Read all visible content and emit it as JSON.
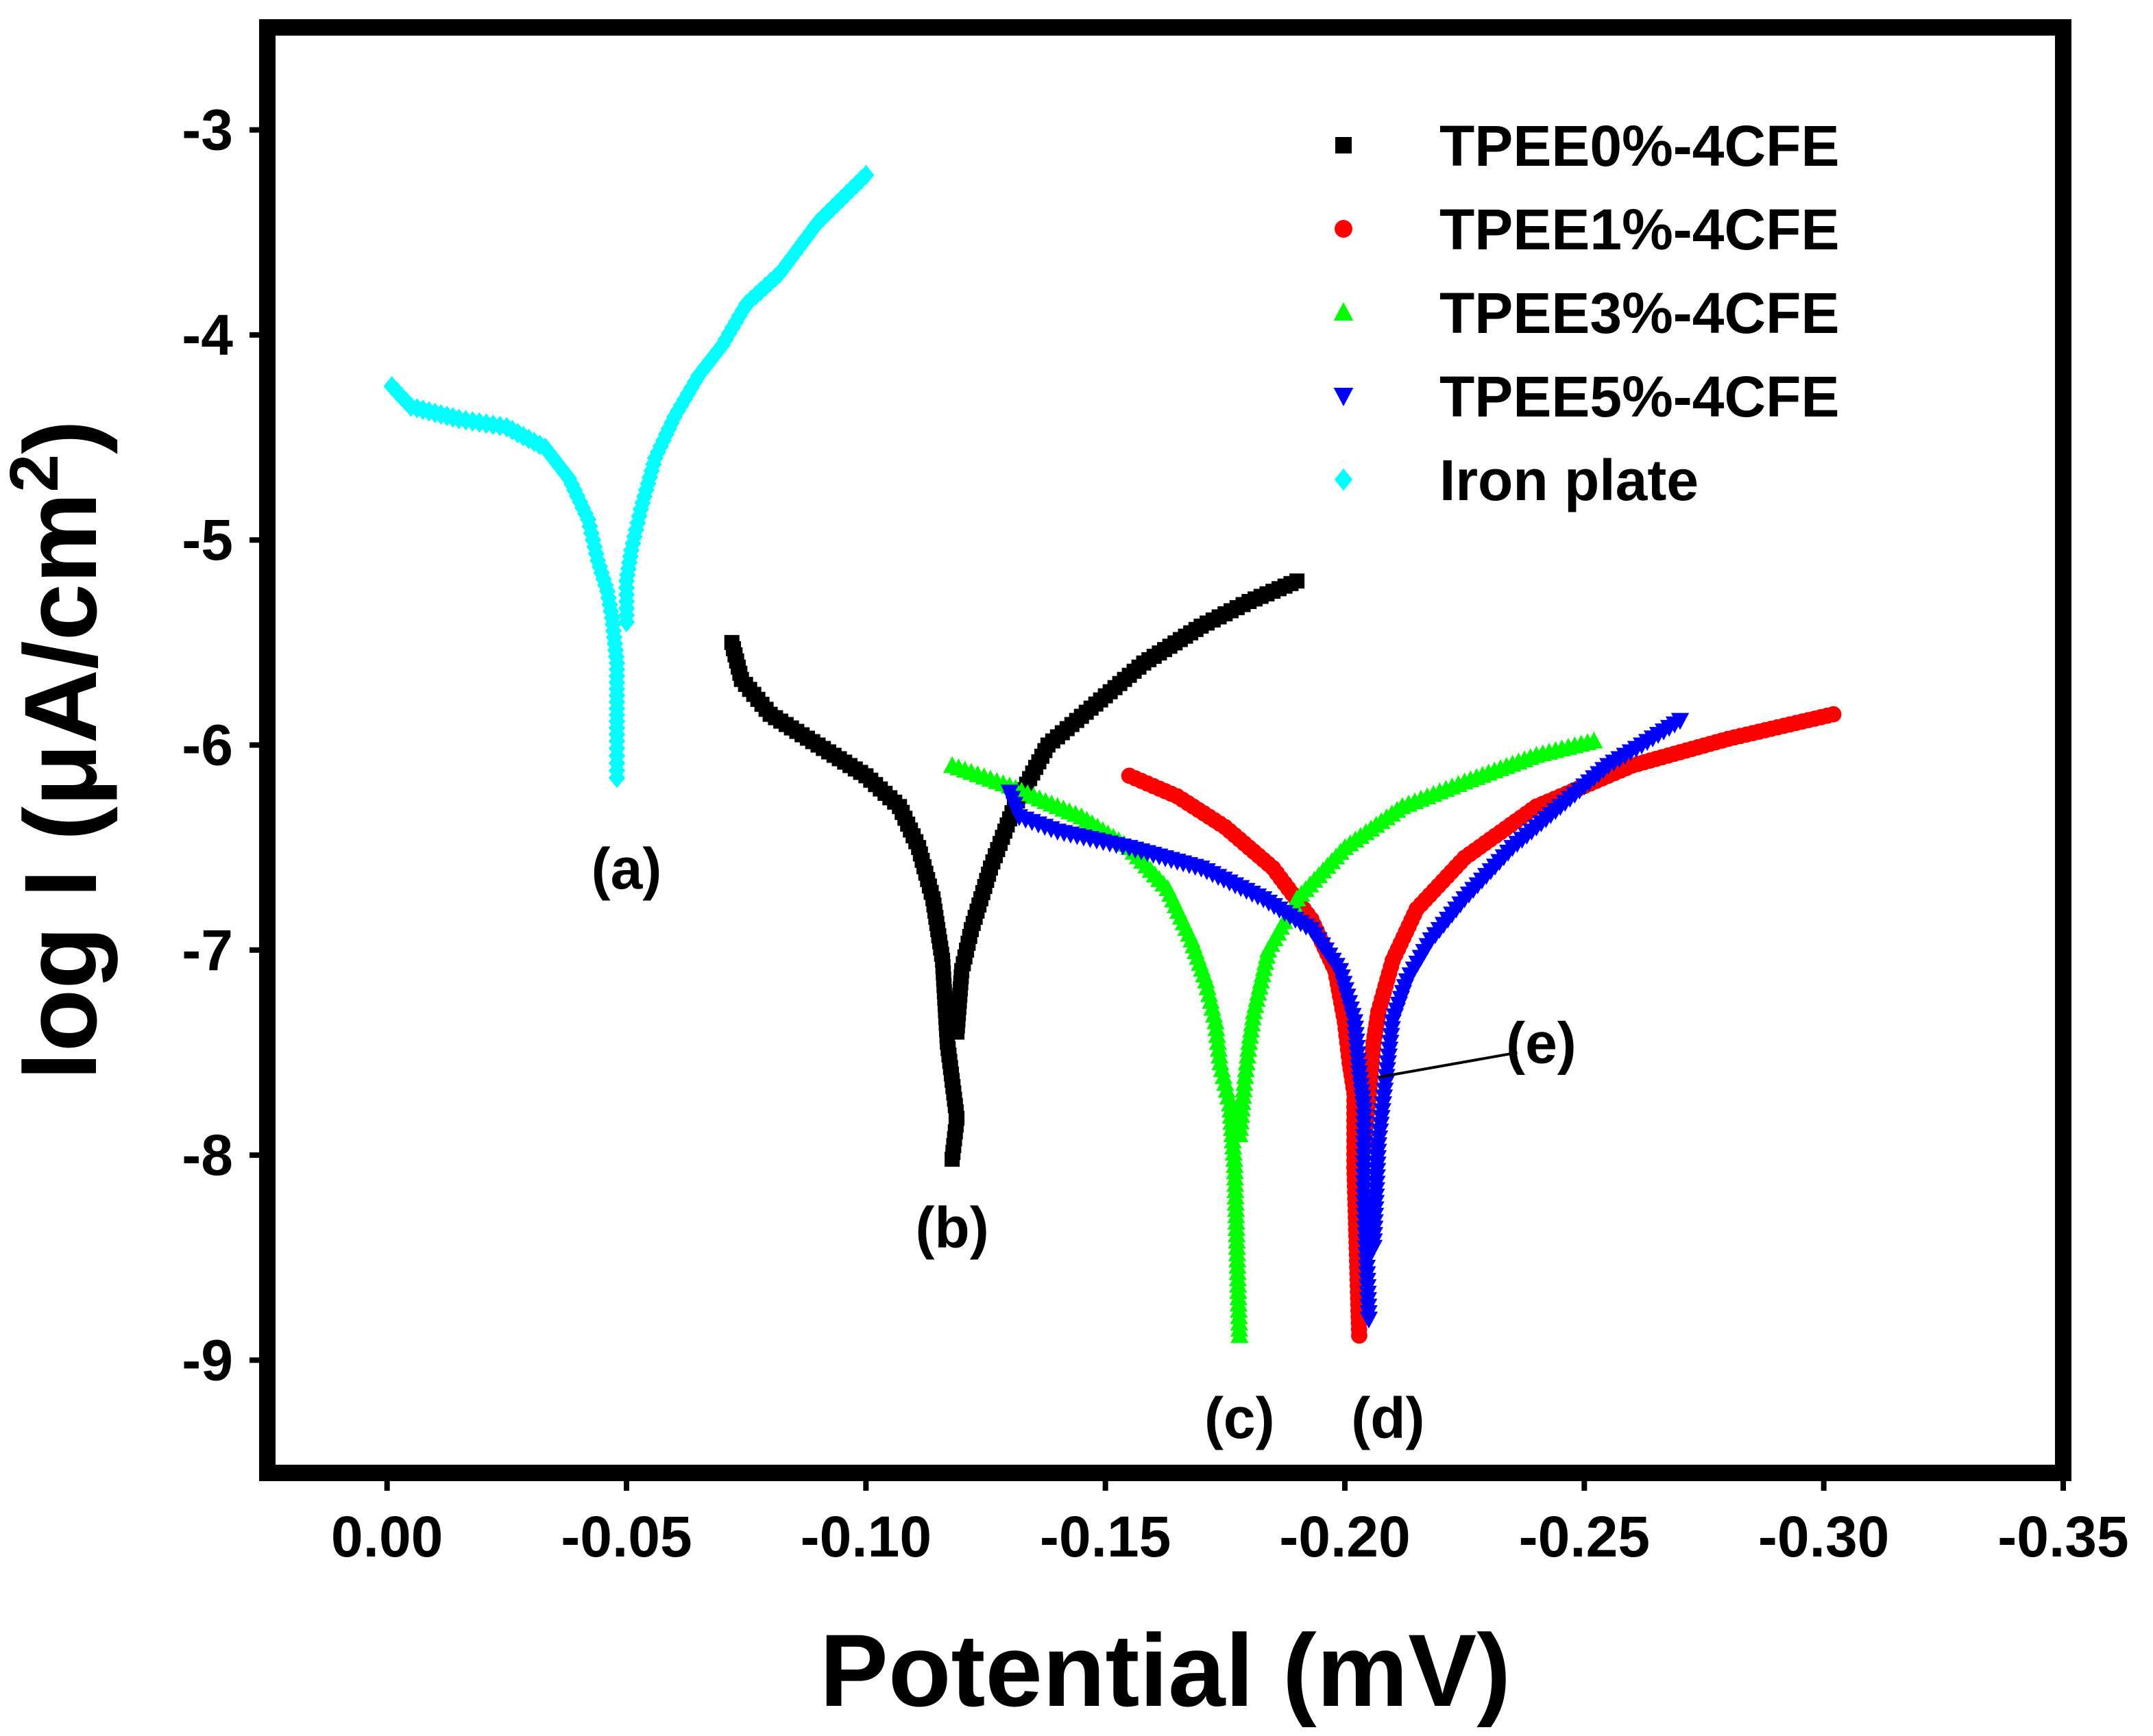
{
  "chart_data": {
    "type": "scatter",
    "title": "",
    "xlabel": "Potential (mV)",
    "ylabel_main": "log I (μA/cm",
    "ylabel_sup": "2",
    "ylabel_close": ")",
    "xlim": [
      0.025,
      -0.35
    ],
    "ylim": [
      -9.55,
      -2.5
    ],
    "xticks": [
      0.0,
      -0.05,
      -0.1,
      -0.15,
      -0.2,
      -0.25,
      -0.3,
      -0.35
    ],
    "xtick_labels": [
      "0.00",
      "-0.05",
      "-0.10",
      "-0.15",
      "-0.20",
      "-0.25",
      "-0.30",
      "-0.35"
    ],
    "yticks": [
      -3,
      -4,
      -5,
      -6,
      -7,
      -8,
      -9
    ],
    "ytick_labels": [
      "-3",
      "-4",
      "-5",
      "-6",
      "-7",
      "-8",
      "-9"
    ],
    "legend_position": "top-right",
    "series": [
      {
        "name": "TPEE0%-4CFE",
        "color": "#000000",
        "marker": "square",
        "branches": [
          [
            [
              -0.072,
              -5.5
            ],
            [
              -0.074,
              -5.68
            ],
            [
              -0.08,
              -5.85
            ],
            [
              -0.09,
              -6.0
            ],
            [
              -0.1,
              -6.15
            ],
            [
              -0.107,
              -6.3
            ],
            [
              -0.111,
              -6.5
            ],
            [
              -0.114,
              -6.75
            ],
            [
              -0.116,
              -7.05
            ],
            [
              -0.117,
              -7.45
            ],
            [
              -0.119,
              -7.82
            ],
            [
              -0.118,
              -8.02
            ]
          ],
          [
            [
              -0.119,
              -7.4
            ],
            [
              -0.12,
              -7.1
            ],
            [
              -0.122,
              -6.9
            ],
            [
              -0.126,
              -6.6
            ],
            [
              -0.131,
              -6.3
            ],
            [
              -0.138,
              -6.0
            ],
            [
              -0.148,
              -5.8
            ],
            [
              -0.158,
              -5.6
            ],
            [
              -0.17,
              -5.42
            ],
            [
              -0.18,
              -5.3
            ],
            [
              -0.19,
              -5.2
            ]
          ]
        ]
      },
      {
        "name": "TPEE1%-4CFE",
        "color": "#ff0000",
        "marker": "circle",
        "branches": [
          [
            [
              -0.155,
              -6.15
            ],
            [
              -0.165,
              -6.25
            ],
            [
              -0.175,
              -6.4
            ],
            [
              -0.185,
              -6.6
            ],
            [
              -0.193,
              -6.85
            ],
            [
              -0.198,
              -7.1
            ],
            [
              -0.2,
              -7.35
            ],
            [
              -0.201,
              -7.55
            ],
            [
              -0.202,
              -7.7
            ],
            [
              -0.202,
              -8.06
            ],
            [
              -0.203,
              -8.88
            ]
          ],
          [
            [
              -0.204,
              -7.95
            ],
            [
              -0.205,
              -7.7
            ],
            [
              -0.206,
              -7.45
            ],
            [
              -0.207,
              -7.3
            ],
            [
              -0.21,
              -7.05
            ],
            [
              -0.215,
              -6.8
            ],
            [
              -0.225,
              -6.55
            ],
            [
              -0.24,
              -6.3
            ],
            [
              -0.26,
              -6.1
            ],
            [
              -0.28,
              -5.97
            ],
            [
              -0.302,
              -5.85
            ]
          ]
        ]
      },
      {
        "name": "TPEE3%-4CFE",
        "color": "#00ff00",
        "marker": "triangle-up",
        "branches": [
          [
            [
              -0.118,
              -6.1
            ],
            [
              -0.13,
              -6.2
            ],
            [
              -0.145,
              -6.35
            ],
            [
              -0.155,
              -6.5
            ],
            [
              -0.163,
              -6.7
            ],
            [
              -0.168,
              -6.95
            ],
            [
              -0.171,
              -7.15
            ],
            [
              -0.173,
              -7.35
            ],
            [
              -0.174,
              -7.55
            ],
            [
              -0.176,
              -7.75
            ],
            [
              -0.177,
              -8.05
            ],
            [
              -0.178,
              -8.88
            ]
          ],
          [
            [
              -0.178,
              -7.9
            ],
            [
              -0.179,
              -7.65
            ],
            [
              -0.18,
              -7.45
            ],
            [
              -0.181,
              -7.3
            ],
            [
              -0.184,
              -7.0
            ],
            [
              -0.19,
              -6.75
            ],
            [
              -0.2,
              -6.5
            ],
            [
              -0.212,
              -6.3
            ],
            [
              -0.225,
              -6.18
            ],
            [
              -0.24,
              -6.05
            ],
            [
              -0.252,
              -5.98
            ]
          ]
        ]
      },
      {
        "name": "TPEE5%-4CFE",
        "color": "#0000ff",
        "marker": "triangle-down",
        "branches": [
          [
            [
              -0.13,
              -6.23
            ],
            [
              -0.132,
              -6.35
            ],
            [
              -0.14,
              -6.42
            ],
            [
              -0.155,
              -6.5
            ],
            [
              -0.17,
              -6.6
            ],
            [
              -0.183,
              -6.75
            ],
            [
              -0.193,
              -6.9
            ],
            [
              -0.199,
              -7.1
            ],
            [
              -0.202,
              -7.35
            ],
            [
              -0.203,
              -7.6
            ],
            [
              -0.204,
              -7.78
            ],
            [
              -0.204,
              -8.2
            ],
            [
              -0.205,
              -8.8
            ]
          ],
          [
            [
              -0.206,
              -8.45
            ],
            [
              -0.207,
              -7.95
            ],
            [
              -0.208,
              -7.75
            ],
            [
              -0.209,
              -7.55
            ],
            [
              -0.21,
              -7.35
            ],
            [
              -0.213,
              -7.15
            ],
            [
              -0.218,
              -6.95
            ],
            [
              -0.225,
              -6.75
            ],
            [
              -0.235,
              -6.5
            ],
            [
              -0.245,
              -6.3
            ],
            [
              -0.255,
              -6.1
            ],
            [
              -0.262,
              -6.0
            ],
            [
              -0.27,
              -5.88
            ]
          ]
        ]
      },
      {
        "name": "Iron plate",
        "color": "#00ffff",
        "marker": "diamond",
        "branches": [
          [
            [
              -0.001,
              -4.25
            ],
            [
              -0.005,
              -4.35
            ],
            [
              -0.015,
              -4.41
            ],
            [
              -0.025,
              -4.45
            ],
            [
              -0.033,
              -4.55
            ],
            [
              -0.038,
              -4.7
            ],
            [
              -0.042,
              -4.9
            ],
            [
              -0.044,
              -5.1
            ],
            [
              -0.046,
              -5.25
            ],
            [
              -0.047,
              -5.38
            ],
            [
              -0.048,
              -5.6
            ],
            [
              -0.048,
              -5.98
            ],
            [
              -0.048,
              -6.16
            ]
          ],
          [
            [
              -0.05,
              -5.4
            ],
            [
              -0.05,
              -5.2
            ],
            [
              -0.051,
              -5.05
            ],
            [
              -0.053,
              -4.85
            ],
            [
              -0.056,
              -4.6
            ],
            [
              -0.06,
              -4.4
            ],
            [
              -0.065,
              -4.2
            ],
            [
              -0.07,
              -4.05
            ],
            [
              -0.075,
              -3.85
            ],
            [
              -0.082,
              -3.7
            ],
            [
              -0.09,
              -3.45
            ],
            [
              -0.1,
              -3.22
            ]
          ]
        ]
      }
    ],
    "annotations": [
      {
        "text": "(a)",
        "x": -0.05,
        "y": -6.6
      },
      {
        "text": "(b)",
        "x": -0.118,
        "y": -8.35
      },
      {
        "text": "(c)",
        "x": -0.178,
        "y": -9.28
      },
      {
        "text": "(d)",
        "x": -0.209,
        "y": -9.28
      },
      {
        "text": "(e)",
        "x": -0.241,
        "y": -7.45
      }
    ],
    "callout": {
      "label": "(e)",
      "from": [
        -0.236,
        -7.5
      ],
      "to": [
        -0.207,
        -7.62
      ]
    }
  }
}
